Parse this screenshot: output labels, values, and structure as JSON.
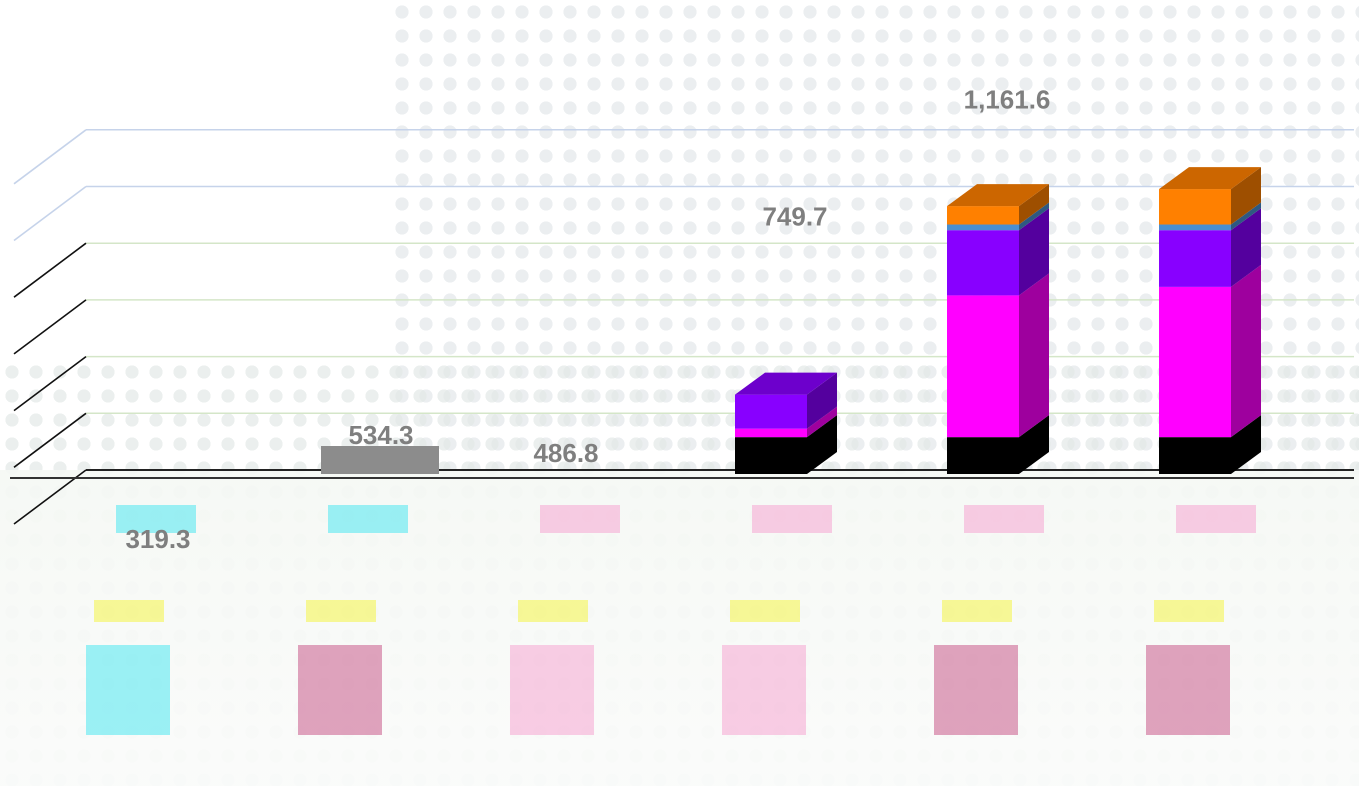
{
  "chart_data": {
    "type": "bar",
    "subtype": "stacked-3d-column",
    "title": "",
    "xlabel": "",
    "ylabel": "",
    "ylim": [
      0,
      1300
    ],
    "grid": true,
    "legend": "none",
    "categories": [
      "",
      "",
      "",
      "",
      "",
      ""
    ],
    "totals": [
      319.3,
      534.3,
      486.8,
      749.7,
      1161.6,
      1208.0
    ],
    "total_labels": [
      "319.3",
      "534.3",
      "486.8",
      "749.7",
      "1,161.6",
      ""
    ],
    "series": [
      {
        "color": "#000000",
        "values": [
          0,
          0,
          0,
          130,
          130,
          130
        ]
      },
      {
        "color": "#ff00ff",
        "values": [
          0,
          0,
          0,
          30,
          500,
          530
        ]
      },
      {
        "color": "#8800ff",
        "values": [
          0,
          0,
          0,
          120,
          230,
          200
        ]
      },
      {
        "color": "#4a8fd0",
        "values": [
          0,
          0,
          0,
          0,
          20,
          20
        ]
      },
      {
        "color": "#ff8000",
        "values": [
          0,
          0,
          0,
          0,
          65,
          125
        ]
      }
    ],
    "colors": {
      "gridline_blue": "#c6d3ea",
      "gridline_green": "#d4e6c8",
      "label_gray": "#7f7f7f",
      "cyan": "#4de8f0",
      "yellow": "#f4f446",
      "pink": "#f6a6d2",
      "rose": "#c95a8a"
    }
  }
}
